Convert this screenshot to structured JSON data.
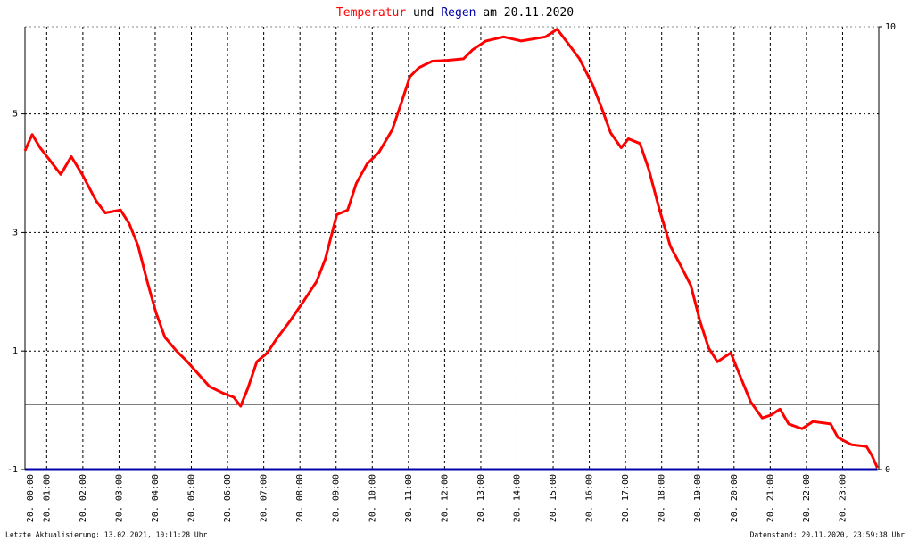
{
  "chart_data": {
    "type": "line",
    "title_joiner": "und",
    "title_date": "am 20.11.2020",
    "footer_left": "Letzte Aktualisierung: 13.02.2021, 10:11:28 Uhr",
    "footer_right": "Datenstand: 20.11.2020, 23:59:38 Uhr",
    "x": [
      0.4,
      0.6,
      0.82,
      1.07,
      1.39,
      1.68,
      1.98,
      2.37,
      2.62,
      3.04,
      3.28,
      3.53,
      3.78,
      4.02,
      4.27,
      4.59,
      4.89,
      5.18,
      5.5,
      5.87,
      6.17,
      6.36,
      6.56,
      6.81,
      7.1,
      7.35,
      7.72,
      8.09,
      8.46,
      8.7,
      9.02,
      9.32,
      9.56,
      9.86,
      10.18,
      10.55,
      10.8,
      11.04,
      11.29,
      11.66,
      12.03,
      12.52,
      12.77,
      13.14,
      13.63,
      14.12,
      14.49,
      14.79,
      15.11,
      15.36,
      15.73,
      16.1,
      16.34,
      16.59,
      16.88,
      17.08,
      17.4,
      17.65,
      17.94,
      18.24,
      18.56,
      18.81,
      19.06,
      19.3,
      19.54,
      19.91,
      20.16,
      20.46,
      20.78,
      21.02,
      21.27,
      21.51,
      21.88,
      22.18,
      22.67,
      22.87,
      23.24,
      23.66,
      23.81,
      23.96
    ],
    "series": [
      {
        "name": "Temperatur",
        "color": "#ff0000",
        "values": [
          4.38,
          4.65,
          4.43,
          4.23,
          3.98,
          4.28,
          3.98,
          3.53,
          3.33,
          3.38,
          3.15,
          2.77,
          2.17,
          1.65,
          1.23,
          1.0,
          0.82,
          0.62,
          0.4,
          0.29,
          0.22,
          0.07,
          0.37,
          0.82,
          0.97,
          1.2,
          1.5,
          1.83,
          2.17,
          2.55,
          3.3,
          3.38,
          3.83,
          4.16,
          4.35,
          4.73,
          5.18,
          5.63,
          5.78,
          5.89,
          5.9,
          5.93,
          6.08,
          6.23,
          6.3,
          6.23,
          6.27,
          6.3,
          6.43,
          6.23,
          5.93,
          5.48,
          5.1,
          4.68,
          4.43,
          4.58,
          4.5,
          4.05,
          3.38,
          2.77,
          2.4,
          2.1,
          1.5,
          1.05,
          0.82,
          0.97,
          0.59,
          0.14,
          -0.13,
          -0.08,
          0.02,
          -0.23,
          -0.31,
          -0.19,
          -0.23,
          -0.46,
          -0.58,
          -0.61,
          -0.76,
          -0.97
        ]
      },
      {
        "name": "Regen",
        "color": "#0000aa",
        "axis": "y2",
        "values": [
          0,
          0,
          0,
          0,
          0,
          0,
          0,
          0,
          0,
          0,
          0,
          0,
          0,
          0,
          0,
          0,
          0,
          0,
          0,
          0,
          0,
          0,
          0,
          0,
          0,
          0,
          0,
          0,
          0,
          0,
          0,
          0,
          0,
          0,
          0,
          0,
          0,
          0,
          0,
          0,
          0,
          0,
          0,
          0,
          0,
          0,
          0,
          0,
          0,
          0,
          0,
          0,
          0,
          0,
          0,
          0,
          0,
          0,
          0,
          0,
          0,
          0,
          0,
          0,
          0,
          0,
          0,
          0,
          0,
          0,
          0,
          0,
          0,
          0,
          0,
          0,
          0,
          0,
          0,
          0
        ]
      }
    ],
    "xlim": [
      0.4,
      24
    ],
    "xticks": [
      {
        "value": 0,
        "label": "20. 00:00"
      },
      {
        "value": 1,
        "label": "20. 01:00"
      },
      {
        "value": 2,
        "label": "20. 02:00"
      },
      {
        "value": 3,
        "label": "20. 03:00"
      },
      {
        "value": 4,
        "label": "20. 04:00"
      },
      {
        "value": 5,
        "label": "20. 05:00"
      },
      {
        "value": 6,
        "label": "20. 06:00"
      },
      {
        "value": 7,
        "label": "20. 07:00"
      },
      {
        "value": 8,
        "label": "20. 08:00"
      },
      {
        "value": 9,
        "label": "20. 09:00"
      },
      {
        "value": 10,
        "label": "20. 10:00"
      },
      {
        "value": 11,
        "label": "20. 11:00"
      },
      {
        "value": 12,
        "label": "20. 12:00"
      },
      {
        "value": 13,
        "label": "20. 13:00"
      },
      {
        "value": 14,
        "label": "20. 14:00"
      },
      {
        "value": 15,
        "label": "20. 15:00"
      },
      {
        "value": 16,
        "label": "20. 16:00"
      },
      {
        "value": 17,
        "label": "20. 17:00"
      },
      {
        "value": 18,
        "label": "20. 18:00"
      },
      {
        "value": 19,
        "label": "20. 19:00"
      },
      {
        "value": 20,
        "label": "20. 20:00"
      },
      {
        "value": 21,
        "label": "20. 21:00"
      },
      {
        "value": 22,
        "label": "20. 22:00"
      },
      {
        "value": 23,
        "label": "20. 23:00"
      }
    ],
    "ylim": [
      -1,
      6.47
    ],
    "yticks": [
      -1,
      1,
      3,
      5
    ],
    "y2lim": [
      0,
      10
    ],
    "y2ticks": [
      0,
      10
    ],
    "hline": 0.1,
    "grid": true
  }
}
